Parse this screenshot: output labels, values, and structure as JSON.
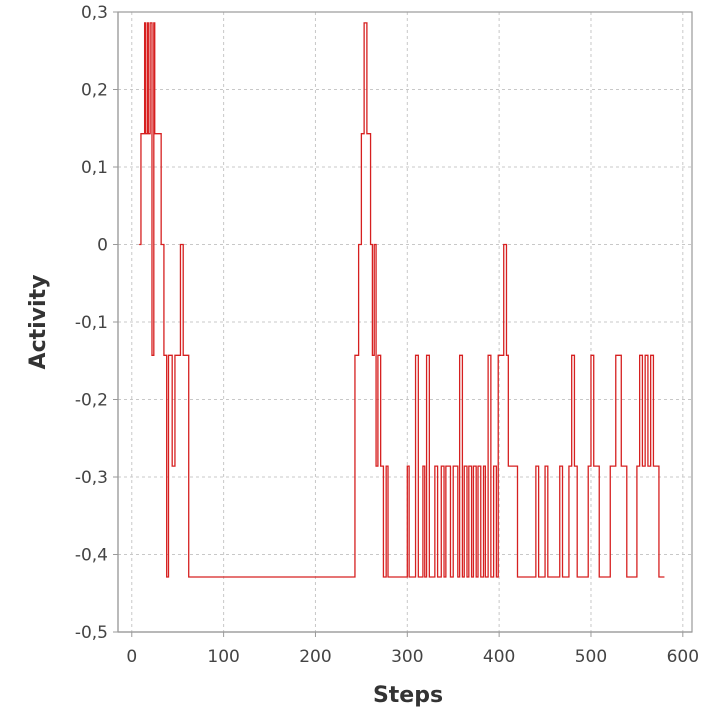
{
  "chart_data": {
    "type": "line",
    "xlabel": "Steps",
    "ylabel": "Activity",
    "xlim": [
      -15,
      610
    ],
    "ylim": [
      -0.5,
      0.3
    ],
    "x_ticks": [
      0,
      100,
      200,
      300,
      400,
      500,
      600
    ],
    "x_tick_labels": [
      "0",
      "100",
      "200",
      "300",
      "400",
      "500",
      "600"
    ],
    "y_ticks": [
      0.3,
      0.2,
      0.1,
      0,
      -0.1,
      -0.2,
      -0.3,
      -0.4,
      -0.5
    ],
    "y_tick_labels": [
      "0,3",
      "0,2",
      "0,1",
      "0",
      "-0,1",
      "-0,2",
      "-0,3",
      "-0,4",
      "-0,5"
    ],
    "grid": true,
    "legend": "none",
    "series": [
      {
        "color": "#d62020",
        "step": true,
        "points": [
          [
            8,
            0
          ],
          [
            10,
            0.143
          ],
          [
            14,
            0.286
          ],
          [
            15,
            0.143
          ],
          [
            17,
            0.286
          ],
          [
            18,
            0.143
          ],
          [
            20,
            0.286
          ],
          [
            22,
            -0.143
          ],
          [
            24,
            0.286
          ],
          [
            25,
            0.143
          ],
          [
            30,
            0.143
          ],
          [
            32,
            0
          ],
          [
            35,
            -0.143
          ],
          [
            38,
            -0.429
          ],
          [
            40,
            -0.143
          ],
          [
            42,
            -0.143
          ],
          [
            44,
            -0.286
          ],
          [
            47,
            -0.143
          ],
          [
            53,
            0
          ],
          [
            56,
            -0.143
          ],
          [
            62,
            -0.429
          ],
          [
            243,
            -0.143
          ],
          [
            247,
            0
          ],
          [
            250,
            0.143
          ],
          [
            253,
            0.286
          ],
          [
            256,
            0.143
          ],
          [
            260,
            0
          ],
          [
            262,
            -0.143
          ],
          [
            264,
            0
          ],
          [
            266,
            -0.286
          ],
          [
            268,
            -0.143
          ],
          [
            271,
            -0.286
          ],
          [
            274,
            -0.429
          ],
          [
            277,
            -0.286
          ],
          [
            279,
            -0.429
          ],
          [
            300,
            -0.286
          ],
          [
            302,
            -0.429
          ],
          [
            309,
            -0.143
          ],
          [
            312,
            -0.429
          ],
          [
            317,
            -0.286
          ],
          [
            319,
            -0.429
          ],
          [
            321,
            -0.143
          ],
          [
            324,
            -0.429
          ],
          [
            330,
            -0.286
          ],
          [
            333,
            -0.429
          ],
          [
            337,
            -0.286
          ],
          [
            340,
            -0.429
          ],
          [
            342,
            -0.286
          ],
          [
            344,
            -0.286
          ],
          [
            347,
            -0.429
          ],
          [
            350,
            -0.286
          ],
          [
            352,
            -0.286
          ],
          [
            355,
            -0.429
          ],
          [
            357,
            -0.143
          ],
          [
            360,
            -0.429
          ],
          [
            362,
            -0.286
          ],
          [
            365,
            -0.429
          ],
          [
            367,
            -0.286
          ],
          [
            370,
            -0.429
          ],
          [
            372,
            -0.286
          ],
          [
            375,
            -0.429
          ],
          [
            377,
            -0.286
          ],
          [
            380,
            -0.429
          ],
          [
            383,
            -0.286
          ],
          [
            385,
            -0.429
          ],
          [
            388,
            -0.143
          ],
          [
            391,
            -0.429
          ],
          [
            394,
            -0.286
          ],
          [
            397,
            -0.429
          ],
          [
            399,
            -0.143
          ],
          [
            402,
            -0.143
          ],
          [
            405,
            0
          ],
          [
            408,
            -0.143
          ],
          [
            410,
            -0.286
          ],
          [
            416,
            -0.286
          ],
          [
            420,
            -0.429
          ],
          [
            437,
            -0.429
          ],
          [
            440,
            -0.286
          ],
          [
            443,
            -0.429
          ],
          [
            450,
            -0.286
          ],
          [
            453,
            -0.429
          ],
          [
            466,
            -0.286
          ],
          [
            469,
            -0.429
          ],
          [
            476,
            -0.286
          ],
          [
            479,
            -0.143
          ],
          [
            482,
            -0.286
          ],
          [
            485,
            -0.429
          ],
          [
            497,
            -0.286
          ],
          [
            500,
            -0.143
          ],
          [
            503,
            -0.286
          ],
          [
            506,
            -0.286
          ],
          [
            509,
            -0.429
          ],
          [
            521,
            -0.286
          ],
          [
            524,
            -0.286
          ],
          [
            527,
            -0.143
          ],
          [
            530,
            -0.143
          ],
          [
            533,
            -0.286
          ],
          [
            536,
            -0.286
          ],
          [
            539,
            -0.429
          ],
          [
            550,
            -0.286
          ],
          [
            553,
            -0.143
          ],
          [
            556,
            -0.286
          ],
          [
            559,
            -0.143
          ],
          [
            562,
            -0.286
          ],
          [
            565,
            -0.143
          ],
          [
            568,
            -0.286
          ],
          [
            571,
            -0.286
          ],
          [
            574,
            -0.429
          ],
          [
            580,
            -0.429
          ]
        ]
      }
    ]
  }
}
